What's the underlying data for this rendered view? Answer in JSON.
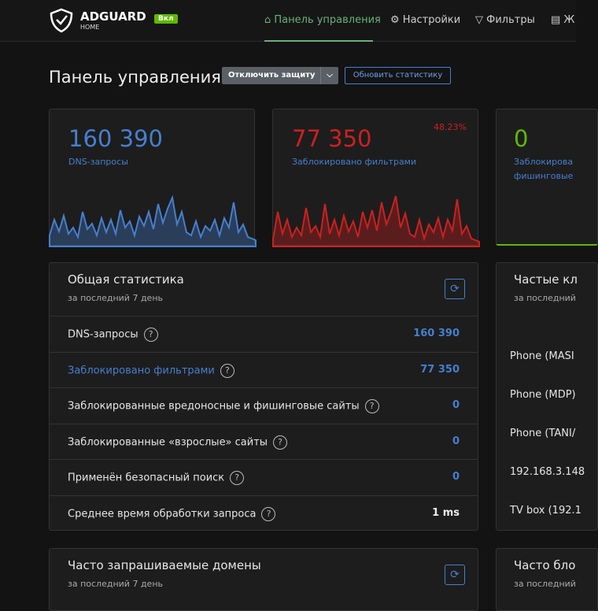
{
  "header": {
    "logo": "ADGUARD",
    "logo_sub": "HOME",
    "status_badge": "Вкл",
    "nav": [
      "Панель управления",
      "Настройки",
      "Фильтры",
      "Ж"
    ]
  },
  "page_title": "Панель управления",
  "buttons": {
    "disable": "Отключить защиту",
    "refresh": "Обновить статистику"
  },
  "cards": [
    {
      "value": "160 390",
      "label": "DNS-запросы"
    },
    {
      "value": "77 350",
      "label": "Заблокировано фильтрами",
      "percent": "48.23%"
    },
    {
      "value": "0",
      "label": "Заблокирова",
      "label2": "фишинговые"
    }
  ],
  "general_stats": {
    "title": "Общая статистика",
    "subtitle": "за последний 7 день",
    "rows": [
      {
        "label": "DNS-запросы",
        "value": "160 390"
      },
      {
        "label": "Заблокировано фильтрами",
        "value": "77 350"
      },
      {
        "label": "Заблокированные вредоносные и фишинговые сайты",
        "value": "0"
      },
      {
        "label": "Заблокированные «взрослые» сайты",
        "value": "0"
      },
      {
        "label": "Применён безопасный поиск",
        "value": "0"
      },
      {
        "label": "Среднее время обработки запроса",
        "value": "1 ms"
      }
    ]
  },
  "top_clients": {
    "title": "Частые кл",
    "subtitle": "за последний",
    "rows": [
      "Phone (MASI",
      "Phone (MDP)",
      "Phone (TANI/",
      "192.168.3.148",
      "TV box (192.1"
    ]
  },
  "top_domains": {
    "title": "Часто запрашиваемые домены",
    "subtitle": "за последний 7 день"
  },
  "blocked_domains": {
    "title": "Часто бло",
    "subtitle": "за последний"
  }
}
